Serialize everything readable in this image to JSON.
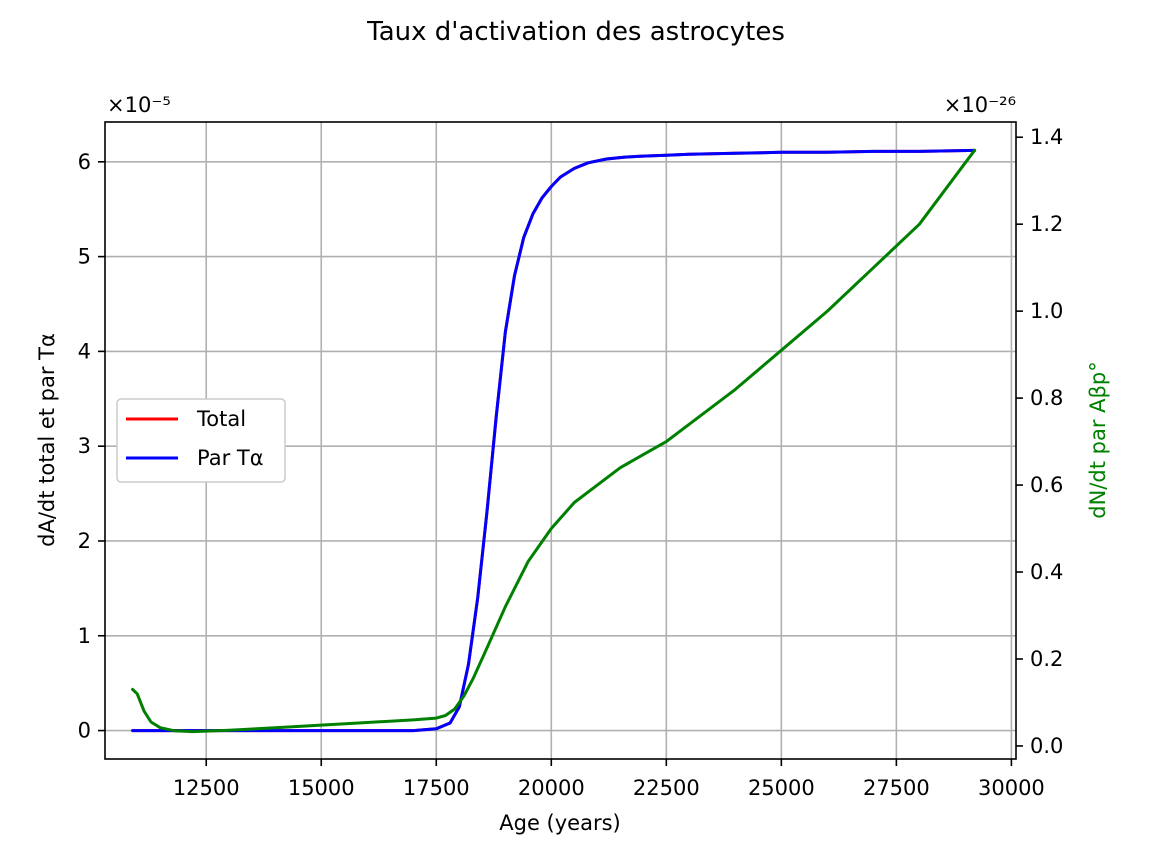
{
  "chart_data": {
    "type": "line",
    "title": "Taux d'activation des astrocytes",
    "xlabel": "Age (years)",
    "ylabel_left": "dA/dt total et par Tα",
    "ylabel_right": "dN/dt par Aβp°",
    "xlim": [
      10300,
      30100
    ],
    "ylim_left": [
      -0.3,
      6.42
    ],
    "ylim_right": [
      -0.03,
      1.435
    ],
    "left_multiplier": "×10⁻⁵",
    "right_multiplier": "×10⁻²⁶",
    "x_ticks": [
      12500,
      15000,
      17500,
      20000,
      22500,
      25000,
      27500,
      30000
    ],
    "x_tick_labels": [
      "12500",
      "15000",
      "17500",
      "20000",
      "22500",
      "25000",
      "27500",
      "30000"
    ],
    "y_left_ticks": [
      0,
      1,
      2,
      3,
      4,
      5,
      6
    ],
    "y_left_tick_labels": [
      "0",
      "1",
      "2",
      "3",
      "4",
      "5",
      "6"
    ],
    "y_right_ticks": [
      0.0,
      0.2,
      0.4,
      0.6,
      0.8,
      1.0,
      1.2,
      1.4
    ],
    "y_right_tick_labels": [
      "0.0",
      "0.2",
      "0.4",
      "0.6",
      "0.8",
      "1.0",
      "1.2",
      "1.4"
    ],
    "grid": true,
    "legend_position": "center-left",
    "legend": [
      {
        "label": "Total",
        "color": "#ff0000"
      },
      {
        "label": "Par Tα",
        "color": "#0000ff"
      }
    ],
    "series": [
      {
        "name": "Total",
        "axis": "left",
        "color": "#ff0000",
        "x": [
          10900,
          12000,
          14000,
          16000,
          17000,
          17500,
          17800,
          18000,
          18200,
          18400,
          18600,
          18800,
          19000,
          19200,
          19400,
          19600,
          19800,
          20000,
          20200,
          20500,
          20800,
          21200,
          21600,
          22000,
          22500,
          23000,
          24000,
          25000,
          26000,
          27000,
          28000,
          29200
        ],
        "y": [
          0,
          0,
          0,
          0,
          0,
          0.02,
          0.08,
          0.25,
          0.7,
          1.4,
          2.3,
          3.3,
          4.2,
          4.8,
          5.2,
          5.45,
          5.62,
          5.74,
          5.84,
          5.93,
          5.99,
          6.03,
          6.05,
          6.06,
          6.07,
          6.08,
          6.09,
          6.1,
          6.1,
          6.11,
          6.11,
          6.12
        ]
      },
      {
        "name": "Par Tα",
        "axis": "left",
        "color": "#0000ff",
        "x": [
          10900,
          12000,
          14000,
          16000,
          17000,
          17500,
          17800,
          18000,
          18200,
          18400,
          18600,
          18800,
          19000,
          19200,
          19400,
          19600,
          19800,
          20000,
          20200,
          20500,
          20800,
          21200,
          21600,
          22000,
          22500,
          23000,
          24000,
          25000,
          26000,
          27000,
          28000,
          29200
        ],
        "y": [
          0,
          0,
          0,
          0,
          0,
          0.02,
          0.08,
          0.25,
          0.7,
          1.4,
          2.3,
          3.3,
          4.2,
          4.8,
          5.2,
          5.45,
          5.62,
          5.74,
          5.84,
          5.93,
          5.99,
          6.03,
          6.05,
          6.06,
          6.07,
          6.08,
          6.09,
          6.1,
          6.1,
          6.11,
          6.11,
          6.12
        ]
      },
      {
        "name": "dN/dt par Aβp°",
        "axis": "right",
        "color": "#008000",
        "x": [
          10900,
          11000,
          11150,
          11300,
          11500,
          11800,
          12200,
          13000,
          14000,
          15000,
          16000,
          17000,
          17500,
          17700,
          17900,
          18100,
          18300,
          18600,
          19000,
          19500,
          20000,
          20500,
          21000,
          21500,
          22000,
          22500,
          23000,
          24000,
          25000,
          26000,
          27000,
          28000,
          29200
        ],
        "y": [
          0.13,
          0.12,
          0.08,
          0.055,
          0.042,
          0.035,
          0.033,
          0.036,
          0.042,
          0.048,
          0.054,
          0.06,
          0.064,
          0.07,
          0.085,
          0.115,
          0.155,
          0.225,
          0.32,
          0.425,
          0.5,
          0.56,
          0.6,
          0.64,
          0.67,
          0.7,
          0.74,
          0.82,
          0.91,
          1.0,
          1.1,
          1.2,
          1.37
        ]
      }
    ]
  }
}
